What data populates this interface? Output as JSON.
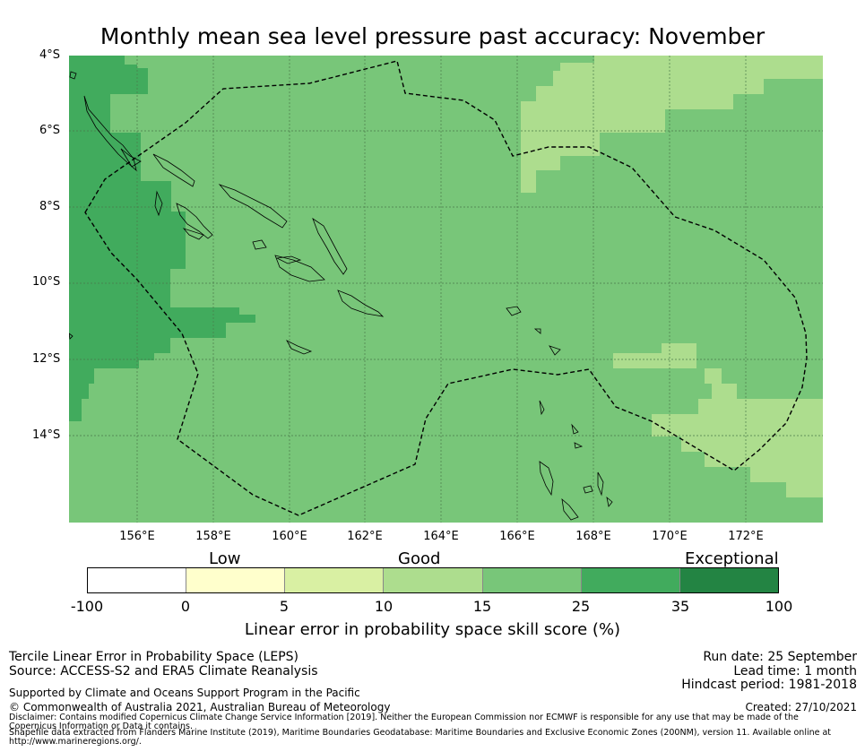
{
  "title": "Monthly mean sea level pressure past accuracy: November",
  "map": {
    "y_ticks": [
      "4°S",
      "6°S",
      "8°S",
      "10°S",
      "12°S",
      "14°S"
    ],
    "x_ticks": [
      "156°E",
      "158°E",
      "160°E",
      "162°E",
      "164°E",
      "166°E",
      "168°E",
      "170°E",
      "172°E"
    ],
    "colors": {
      "c15_25": "#78c679",
      "c25_35": "#41ab5d",
      "c10_15": "#addd8e",
      "coast": "#000000",
      "grid": "#4a7a4a"
    }
  },
  "colorbar": {
    "categories": [
      "Low",
      "Good",
      "Exceptional"
    ],
    "ticks": [
      "-100",
      "0",
      "5",
      "10",
      "15",
      "25",
      "35",
      "100"
    ],
    "colors": [
      "#ffffff",
      "#ffffcc",
      "#d9f0a3",
      "#addd8e",
      "#78c679",
      "#41ab5d",
      "#238443"
    ],
    "label": "Linear error in probability space skill score (%)"
  },
  "info": {
    "left_line1": "Tercile Linear Error in Probability Space (LEPS)",
    "left_line2": "Source: ACCESS-S2 and ERA5 Climate Reanalysis",
    "right_line1": "Run date: 25 September",
    "right_line2": "Lead time: 1 month",
    "right_line3": "Hindcast period: 1981-2018",
    "supported": "Supported by Climate and Oceans Support Program in the Pacific",
    "copyright": "© Commonwealth of Australia 2021, Australian Bureau of Meteorology",
    "created": "Created: 27/10/2021",
    "disclaimer": "Disclaimer: Contains modified Copernicus Climate Change Service Information [2019]. Neither the European Commission nor ECMWF is responsible for any use that may be made of the Copernicus Information or Data it contains.",
    "shapefile": "Shapefile data extracted from Flanders Marine Institute (2019), Maritime Boundaries Geodatabase: Maritime Boundaries and Exclusive Economic Zones (200NM), version 11. Available online at http://www.marineregions.org/."
  }
}
